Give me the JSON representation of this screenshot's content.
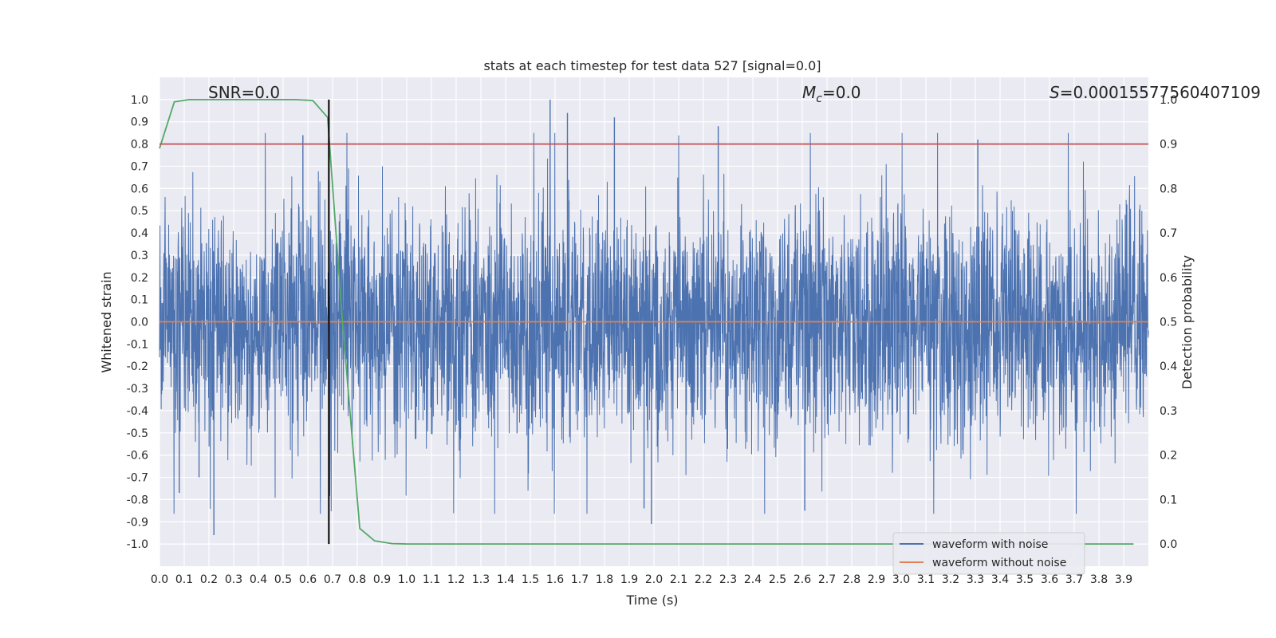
{
  "chart_data": {
    "type": "line",
    "title": "stats at each timestep for test data 527 [signal=0.0]",
    "xlabel": "Time (s)",
    "ylabel": "Whitened strain",
    "ylabel_right": "Detection probability",
    "xlim": [
      0.0,
      4.0
    ],
    "ylim": [
      -1.1,
      1.1
    ],
    "ylim_right": [
      -0.05,
      1.05
    ],
    "x_ticks": [
      "0.0",
      "0.1",
      "0.2",
      "0.3",
      "0.4",
      "0.5",
      "0.6",
      "0.7",
      "0.8",
      "0.9",
      "1.0",
      "1.1",
      "1.2",
      "1.3",
      "1.4",
      "1.5",
      "1.6",
      "1.7",
      "1.8",
      "1.9",
      "2.0",
      "2.1",
      "2.2",
      "2.3",
      "2.4",
      "2.5",
      "2.6",
      "2.7",
      "2.8",
      "2.9",
      "3.0",
      "3.1",
      "3.2",
      "3.3",
      "3.4",
      "3.5",
      "3.6",
      "3.7",
      "3.8",
      "3.9"
    ],
    "y_ticks": [
      "1.0",
      "0.9",
      "0.8",
      "0.7",
      "0.6",
      "0.5",
      "0.4",
      "0.3",
      "0.2",
      "0.1",
      "0.0",
      "-0.1",
      "-0.2",
      "-0.3",
      "-0.4",
      "-0.5",
      "-0.6",
      "-0.7",
      "-0.8",
      "-0.9",
      "-1.0"
    ],
    "y_ticks_right": [
      "1.0",
      "0.9",
      "0.8",
      "0.7",
      "0.6",
      "0.5",
      "0.4",
      "0.3",
      "0.2",
      "0.1",
      "0.0"
    ],
    "annotations": {
      "snr": "SNR=0.0",
      "mc": "=0.0",
      "s": "=0.00015577560407109",
      "mc_symbol": "M",
      "mc_sub": "c",
      "s_symbol": "S"
    },
    "grid": true,
    "legend_placement": "lower-right",
    "series": [
      {
        "name": "waveform with noise",
        "axis": "left",
        "color": "#4c72b0",
        "description_range": [
          -0.96,
          1.0
        ],
        "peaks": [
          {
            "x": 1.58,
            "y": 1.0
          },
          {
            "x": 1.65,
            "y": 0.94
          },
          {
            "x": 1.84,
            "y": 0.92
          },
          {
            "x": 2.26,
            "y": 0.88
          },
          {
            "x": 0.58,
            "y": 0.84
          },
          {
            "x": 3.31,
            "y": 0.82
          },
          {
            "x": 0.22,
            "y": -0.96
          },
          {
            "x": 1.99,
            "y": -0.91
          },
          {
            "x": 1.96,
            "y": -0.84
          },
          {
            "x": 2.61,
            "y": -0.85
          },
          {
            "x": 0.08,
            "y": -0.77
          },
          {
            "x": 0.16,
            "y": -0.7
          }
        ]
      },
      {
        "name": "waveform without noise",
        "axis": "left",
        "color": "#dd8452",
        "x": [
          0.0,
          4.0
        ],
        "y": [
          0.0,
          0.0
        ]
      },
      {
        "name": "",
        "axis": "right",
        "color": "#55a868",
        "x": [
          0.0,
          0.06,
          0.12,
          0.18,
          0.25,
          0.31,
          0.37,
          0.43,
          0.49,
          0.55,
          0.62,
          0.68,
          0.74,
          0.81,
          0.87,
          0.94,
          1.0,
          1.5,
          2.0,
          2.5,
          3.0,
          3.5,
          3.94
        ],
        "y": [
          0.89,
          0.995,
          1.0,
          1.0,
          1.0,
          1.0,
          1.0,
          1.0,
          1.0,
          1.0,
          0.998,
          0.96,
          0.5,
          0.035,
          0.007,
          0.001,
          0.0,
          0.0,
          0.0,
          0.0,
          0.0,
          0.0,
          0.0
        ]
      },
      {
        "name": "",
        "axis": "right",
        "color": "#c44e52",
        "x": [
          0.0,
          4.0
        ],
        "y": [
          0.9,
          0.9
        ]
      }
    ],
    "vline": {
      "x": 0.685,
      "ymin": -1.0,
      "ymax": 1.0,
      "color": "#000000"
    }
  }
}
